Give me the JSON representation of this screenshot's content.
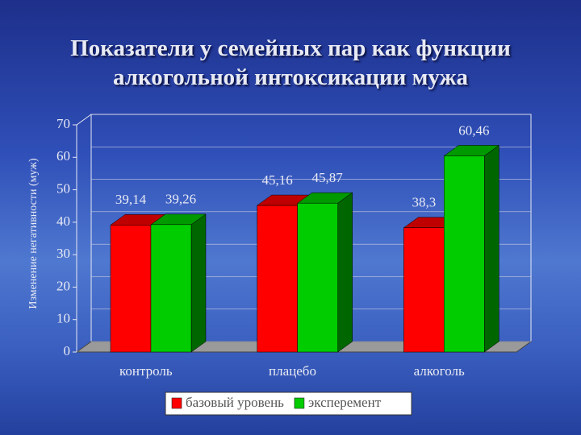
{
  "chart_data": {
    "type": "bar3d",
    "title": "Показатели у семейных пар как функции алкогольной интоксикации мужа",
    "ylabel": "Изменение негативности (муж)",
    "categories": [
      "контроль",
      "плацебо",
      "алкоголь"
    ],
    "series": [
      {
        "name": "базовый уровень",
        "color": "#ff0000",
        "values": [
          39.14,
          45.16,
          38.3
        ],
        "value_labels": [
          "39,14",
          "45,16",
          "38,3"
        ]
      },
      {
        "name": "эксперемент",
        "color": "#00cc00",
        "values": [
          39.26,
          45.87,
          60.46
        ],
        "value_labels": [
          "39,26",
          "45,87",
          "60,46"
        ]
      }
    ],
    "ylim": [
      0,
      70
    ],
    "yticks": [
      0,
      10,
      20,
      30,
      40,
      50,
      60,
      70
    ],
    "grid": true,
    "legend": "bottom"
  }
}
